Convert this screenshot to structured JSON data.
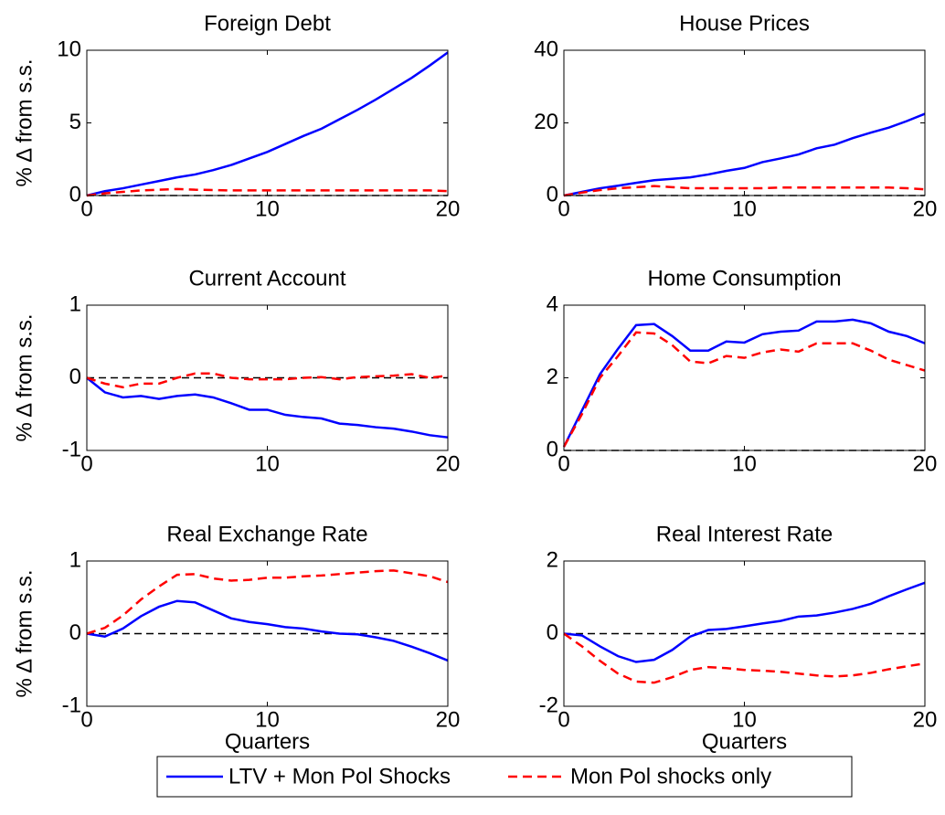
{
  "chart_data": [
    {
      "type": "line",
      "title": "Foreign Debt",
      "ylabel": "% Δ from s.s.",
      "x": [
        0,
        1,
        2,
        3,
        4,
        5,
        6,
        7,
        8,
        9,
        10,
        11,
        12,
        13,
        14,
        15,
        16,
        17,
        18,
        19,
        20
      ],
      "xlim": [
        0,
        20
      ],
      "xticks": [
        0,
        10,
        20
      ],
      "ylim": [
        0,
        10
      ],
      "yticks": [
        0,
        5,
        10
      ],
      "series": [
        {
          "name": "LTV + Mon Pol Shocks",
          "color": "#0000ff",
          "dash": "solid",
          "values": [
            0,
            0.3,
            0.5,
            0.75,
            1.0,
            1.25,
            1.45,
            1.75,
            2.1,
            2.55,
            3.0,
            3.55,
            4.1,
            4.6,
            5.25,
            5.9,
            6.6,
            7.35,
            8.1,
            8.95,
            9.85
          ]
        },
        {
          "name": "Mon Pol shocks only",
          "color": "#ff0000",
          "dash": "dashed",
          "values": [
            0,
            0.15,
            0.25,
            0.35,
            0.4,
            0.45,
            0.4,
            0.38,
            0.35,
            0.35,
            0.35,
            0.35,
            0.35,
            0.35,
            0.35,
            0.35,
            0.35,
            0.35,
            0.35,
            0.35,
            0.3
          ]
        }
      ]
    },
    {
      "type": "line",
      "title": "House Prices",
      "x": [
        0,
        1,
        2,
        3,
        4,
        5,
        6,
        7,
        8,
        9,
        10,
        11,
        12,
        13,
        14,
        15,
        16,
        17,
        18,
        19,
        20
      ],
      "xlim": [
        0,
        20
      ],
      "xticks": [
        0,
        10,
        20
      ],
      "ylim": [
        0,
        40
      ],
      "yticks": [
        0,
        20,
        40
      ],
      "series": [
        {
          "name": "LTV + Mon Pol Shocks",
          "color": "#0000ff",
          "dash": "solid",
          "values": [
            0,
            1,
            2,
            2.7,
            3.5,
            4.2,
            4.6,
            5,
            5.8,
            6.8,
            7.6,
            9.2,
            10.2,
            11.3,
            13,
            14,
            15.8,
            17.3,
            18.7,
            20.5,
            22.5
          ]
        },
        {
          "name": "Mon Pol shocks only",
          "color": "#ff0000",
          "dash": "dashed",
          "values": [
            0,
            0.8,
            1.5,
            2,
            2.3,
            2.6,
            2.3,
            2,
            2,
            2,
            2,
            2,
            2.2,
            2.2,
            2.2,
            2.2,
            2.2,
            2.2,
            2.2,
            2,
            1.7
          ]
        }
      ]
    },
    {
      "type": "line",
      "title": "Current Account",
      "ylabel": "% Δ from s.s.",
      "x": [
        0,
        1,
        2,
        3,
        4,
        5,
        6,
        7,
        8,
        9,
        10,
        11,
        12,
        13,
        14,
        15,
        16,
        17,
        18,
        19,
        20
      ],
      "xlim": [
        0,
        20
      ],
      "xticks": [
        0,
        10,
        20
      ],
      "ylim": [
        -1,
        1
      ],
      "yticks": [
        -1,
        0,
        1
      ],
      "series": [
        {
          "name": "LTV + Mon Pol Shocks",
          "color": "#0000ff",
          "dash": "solid",
          "values": [
            0,
            -0.2,
            -0.27,
            -0.25,
            -0.29,
            -0.25,
            -0.23,
            -0.27,
            -0.35,
            -0.44,
            -0.44,
            -0.51,
            -0.54,
            -0.56,
            -0.63,
            -0.65,
            -0.68,
            -0.7,
            -0.74,
            -0.79,
            -0.82
          ]
        },
        {
          "name": "Mon Pol shocks only",
          "color": "#ff0000",
          "dash": "dashed",
          "values": [
            0,
            -0.08,
            -0.13,
            -0.08,
            -0.08,
            0,
            0.06,
            0.06,
            0,
            -0.02,
            -0.02,
            -0.02,
            0,
            0.01,
            -0.02,
            0.01,
            0.02,
            0.03,
            0.05,
            0,
            0.03
          ]
        }
      ]
    },
    {
      "type": "line",
      "title": "Home Consumption",
      "x": [
        0,
        1,
        2,
        3,
        4,
        5,
        6,
        7,
        8,
        9,
        10,
        11,
        12,
        13,
        14,
        15,
        16,
        17,
        18,
        19,
        20
      ],
      "xlim": [
        0,
        20
      ],
      "xticks": [
        0,
        10,
        20
      ],
      "ylim": [
        0,
        4
      ],
      "yticks": [
        0,
        2,
        4
      ],
      "series": [
        {
          "name": "LTV + Mon Pol Shocks",
          "color": "#0000ff",
          "dash": "solid",
          "values": [
            0.1,
            1.1,
            2.1,
            2.8,
            3.45,
            3.48,
            3.15,
            2.75,
            2.75,
            3.0,
            2.97,
            3.2,
            3.27,
            3.3,
            3.55,
            3.55,
            3.6,
            3.5,
            3.27,
            3.15,
            2.95
          ]
        },
        {
          "name": "Mon Pol shocks only",
          "color": "#ff0000",
          "dash": "dashed",
          "values": [
            0.1,
            1.0,
            2.0,
            2.6,
            3.25,
            3.22,
            2.9,
            2.45,
            2.4,
            2.6,
            2.55,
            2.7,
            2.78,
            2.72,
            2.95,
            2.95,
            2.95,
            2.75,
            2.5,
            2.35,
            2.2
          ]
        }
      ]
    },
    {
      "type": "line",
      "title": "Real Exchange Rate",
      "ylabel": "% Δ from s.s.",
      "xlabel": "Quarters",
      "x": [
        0,
        1,
        2,
        3,
        4,
        5,
        6,
        7,
        8,
        9,
        10,
        11,
        12,
        13,
        14,
        15,
        16,
        17,
        18,
        19,
        20
      ],
      "xlim": [
        0,
        20
      ],
      "xticks": [
        0,
        10,
        20
      ],
      "ylim": [
        -1,
        1
      ],
      "yticks": [
        -1,
        0,
        1
      ],
      "series": [
        {
          "name": "LTV + Mon Pol Shocks",
          "color": "#0000ff",
          "dash": "solid",
          "values": [
            0,
            -0.04,
            0.07,
            0.24,
            0.37,
            0.45,
            0.43,
            0.32,
            0.21,
            0.16,
            0.13,
            0.09,
            0.07,
            0.03,
            0,
            -0.01,
            -0.05,
            -0.1,
            -0.18,
            -0.27,
            -0.37
          ]
        },
        {
          "name": "Mon Pol shocks only",
          "color": "#ff0000",
          "dash": "dashed",
          "values": [
            0,
            0.08,
            0.25,
            0.47,
            0.65,
            0.81,
            0.82,
            0.76,
            0.73,
            0.74,
            0.77,
            0.77,
            0.79,
            0.8,
            0.82,
            0.84,
            0.86,
            0.87,
            0.83,
            0.79,
            0.71
          ]
        }
      ]
    },
    {
      "type": "line",
      "title": "Real Interest Rate",
      "xlabel": "Quarters",
      "x": [
        0,
        1,
        2,
        3,
        4,
        5,
        6,
        7,
        8,
        9,
        10,
        11,
        12,
        13,
        14,
        15,
        16,
        17,
        18,
        19,
        20
      ],
      "xlim": [
        0,
        20
      ],
      "xticks": [
        0,
        10,
        20
      ],
      "ylim": [
        -2,
        2
      ],
      "yticks": [
        -2,
        0,
        2
      ],
      "series": [
        {
          "name": "LTV + Mon Pol Shocks",
          "color": "#0000ff",
          "dash": "solid",
          "values": [
            0,
            -0.05,
            -0.35,
            -0.62,
            -0.78,
            -0.72,
            -0.45,
            -0.08,
            0.1,
            0.13,
            0.2,
            0.28,
            0.35,
            0.47,
            0.5,
            0.58,
            0.68,
            0.82,
            1.03,
            1.22,
            1.4
          ]
        },
        {
          "name": "Mon Pol shocks only",
          "color": "#ff0000",
          "dash": "dashed",
          "values": [
            0,
            -0.35,
            -0.75,
            -1.1,
            -1.32,
            -1.35,
            -1.2,
            -1.0,
            -0.92,
            -0.95,
            -1.0,
            -1.02,
            -1.05,
            -1.1,
            -1.15,
            -1.18,
            -1.15,
            -1.08,
            -0.98,
            -0.9,
            -0.82
          ]
        }
      ]
    }
  ]
}
